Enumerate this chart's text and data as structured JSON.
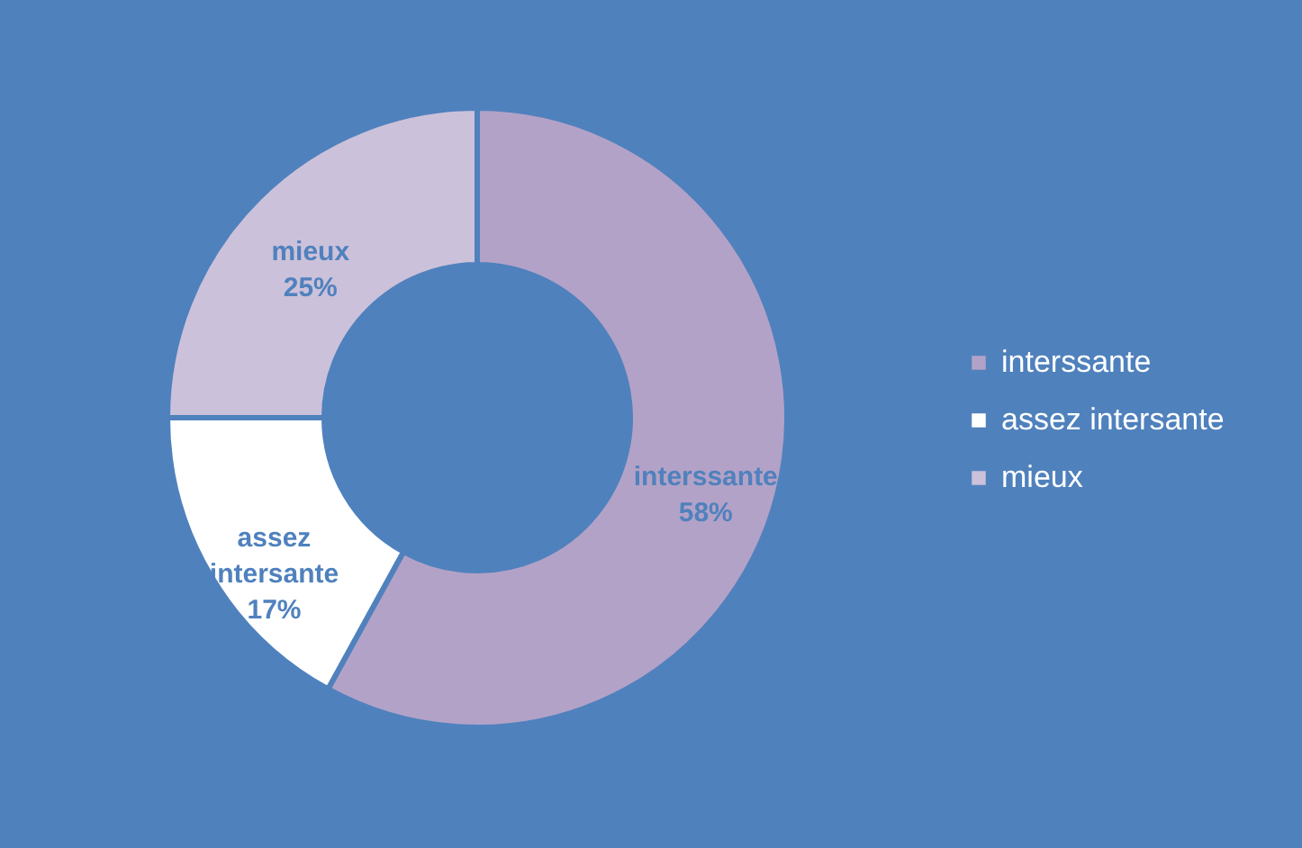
{
  "chart_data": {
    "type": "donut",
    "categories": [
      "interssante",
      "assez intersante",
      "mieux"
    ],
    "values": [
      58,
      17,
      25
    ],
    "value_labels": [
      "58%",
      "17%",
      "25%"
    ],
    "colors": [
      "#b3a2c7",
      "#ffffff",
      "#ccc1da"
    ],
    "legend": "right"
  }
}
